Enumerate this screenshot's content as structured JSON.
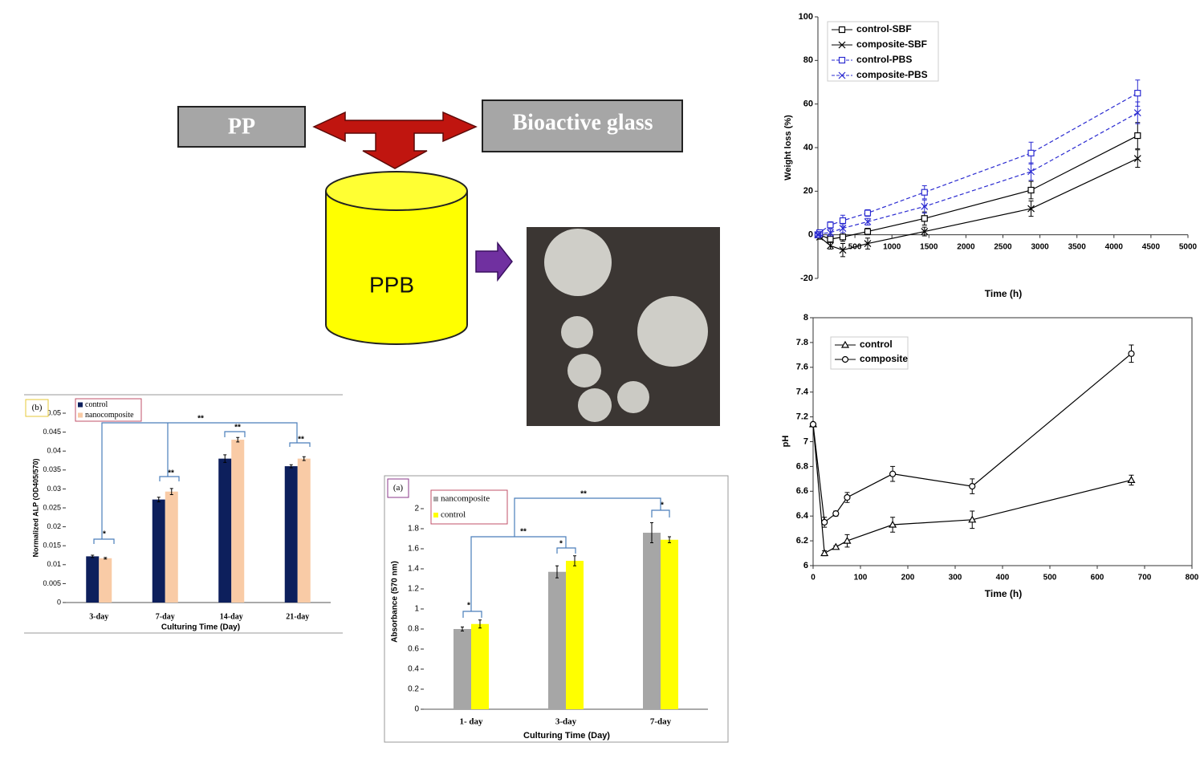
{
  "diagram": {
    "nodes": [
      {
        "label": "PP"
      },
      {
        "label": "Bioactive glass"
      },
      {
        "label": "PPB"
      }
    ]
  },
  "chart_data": [
    {
      "type": "line",
      "xlabel": "Time (h)",
      "ylabel": "Weight loss (%)",
      "x": [
        0,
        24,
        168,
        336,
        672,
        1440,
        2880,
        4320
      ],
      "xlim": [
        0,
        5000
      ],
      "xticks": [
        500,
        1000,
        1500,
        2000,
        2500,
        3000,
        3500,
        4000,
        4500,
        5000
      ],
      "ylim": [
        -20,
        100
      ],
      "yticks": [
        -20,
        0,
        20,
        40,
        60,
        80,
        100
      ],
      "legend": "top-left",
      "series": [
        {
          "name": "control-SBF",
          "color": "#000000",
          "marker": "square",
          "style": "solid",
          "values": [
            0,
            0,
            -2,
            -1,
            1.5,
            7.5,
            20.5,
            45.5
          ],
          "errors": [
            0.5,
            1,
            1.5,
            2,
            1.5,
            3,
            4,
            6
          ]
        },
        {
          "name": "composite-SBF",
          "color": "#000000",
          "marker": "x",
          "style": "solid",
          "values": [
            0,
            -1,
            -5,
            -7,
            -4,
            1.5,
            12,
            35
          ],
          "errors": [
            0.5,
            1,
            1.5,
            3,
            2.5,
            2,
            3.5,
            4
          ]
        },
        {
          "name": "control-PBS",
          "color": "#2b2bd1",
          "marker": "square",
          "style": "dashed",
          "values": [
            0,
            1,
            4.5,
            6.5,
            10,
            19.5,
            37.5,
            65
          ],
          "errors": [
            0.5,
            1,
            1.5,
            2.5,
            1.5,
            3,
            5,
            6
          ]
        },
        {
          "name": "composite-PBS",
          "color": "#2b2bd1",
          "marker": "x",
          "style": "dashed",
          "values": [
            0,
            0.5,
            1,
            3,
            6,
            13,
            29,
            56
          ],
          "errors": [
            0.5,
            1,
            1.5,
            2,
            1.5,
            3,
            4,
            5
          ]
        }
      ]
    },
    {
      "type": "line",
      "xlabel": "Time (h)",
      "ylabel": "pH",
      "x": [
        0,
        24,
        48,
        72,
        168,
        336,
        672
      ],
      "xlim": [
        0,
        800
      ],
      "xticks": [
        0,
        100,
        200,
        300,
        400,
        500,
        600,
        700,
        800
      ],
      "ylim": [
        6,
        8
      ],
      "yticks": [
        6,
        6.2,
        6.4,
        6.6,
        6.8,
        7,
        7.2,
        7.4,
        7.6,
        7.8,
        8
      ],
      "legend": "top-left",
      "series": [
        {
          "name": "control",
          "color": "#000000",
          "marker": "triangle",
          "style": "solid",
          "values": [
            7.14,
            6.1,
            6.15,
            6.2,
            6.33,
            6.37,
            6.69
          ],
          "errors": [
            0.01,
            0.02,
            0.01,
            0.05,
            0.06,
            0.07,
            0.04
          ]
        },
        {
          "name": "composite",
          "color": "#000000",
          "marker": "circle",
          "style": "solid",
          "values": [
            7.14,
            6.35,
            6.42,
            6.55,
            6.74,
            6.64,
            7.71
          ],
          "errors": [
            0.01,
            0.04,
            0.02,
            0.04,
            0.06,
            0.06,
            0.07
          ]
        }
      ]
    },
    {
      "type": "bar",
      "panel_label": "(b)",
      "xlabel": "Culturing Time (Day)",
      "ylabel": "Normalized ALP (OD405/570)",
      "categories": [
        "3-day",
        "7-day",
        "14-day",
        "21-day"
      ],
      "ylim": [
        0,
        0.05
      ],
      "yticks": [
        0,
        0.005,
        0.01,
        0.015,
        0.02,
        0.025,
        0.03,
        0.035,
        0.04,
        0.045,
        0.05
      ],
      "legend": "top-left",
      "series": [
        {
          "name": "control",
          "color": "#0d1f5c",
          "values": [
            0.0122,
            0.0272,
            0.038,
            0.036
          ],
          "errors": [
            0.0003,
            0.0006,
            0.001,
            0.0004
          ]
        },
        {
          "name": "nanocomposite",
          "color": "#f9cba6",
          "values": [
            0.0117,
            0.0293,
            0.043,
            0.038
          ],
          "errors": [
            0.0002,
            0.0008,
            0.0006,
            0.0005
          ]
        }
      ],
      "annotations": [
        "*",
        "**",
        "**",
        "**",
        "**"
      ]
    },
    {
      "type": "bar",
      "panel_label": "(a)",
      "xlabel": "Culturing Time (Day)",
      "ylabel": "Absorbance (570 nm)",
      "categories": [
        "1- day",
        "3-day",
        "7-day"
      ],
      "ylim": [
        0,
        2
      ],
      "yticks": [
        0,
        0.2,
        0.4,
        0.6,
        0.8,
        1,
        1.2,
        1.4,
        1.6,
        1.8,
        2
      ],
      "legend": "top-left",
      "series": [
        {
          "name": "nancomposite",
          "color": "#a6a6a6",
          "values": [
            0.8,
            1.37,
            1.76
          ],
          "errors": [
            0.02,
            0.06,
            0.1
          ]
        },
        {
          "name": "control",
          "color": "#ffff00",
          "values": [
            0.85,
            1.48,
            1.69
          ],
          "errors": [
            0.04,
            0.05,
            0.03
          ]
        }
      ],
      "annotations": [
        "*",
        "*",
        "*",
        "**",
        "**"
      ]
    }
  ]
}
